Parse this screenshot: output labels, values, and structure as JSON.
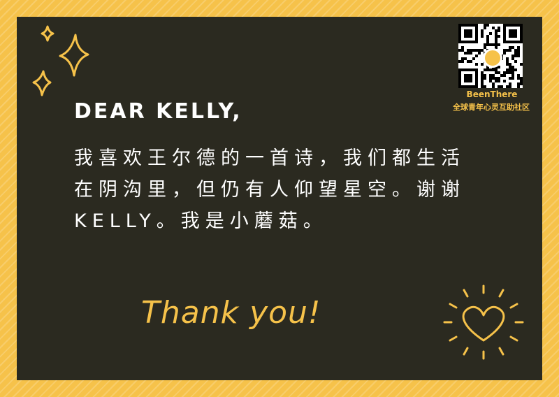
{
  "card": {
    "heading": "DEAR KELLY,",
    "message": "我喜欢王尔德的一首诗，我们都生活在阴沟里，但仍有人仰望星空。谢谢KELLY。我是小蘑菇。",
    "thanks": "Thank you!"
  },
  "brand": {
    "name": "BeenThere",
    "tagline": "全球青年心灵互助社区"
  },
  "colors": {
    "frame": "#f6c24a",
    "card_background": "#2b2a20",
    "text": "#ffffff",
    "accent": "#f6c24a"
  },
  "icons": [
    "sparkles-icon",
    "heart-icon",
    "qr-code",
    "brand-logo-icon"
  ]
}
